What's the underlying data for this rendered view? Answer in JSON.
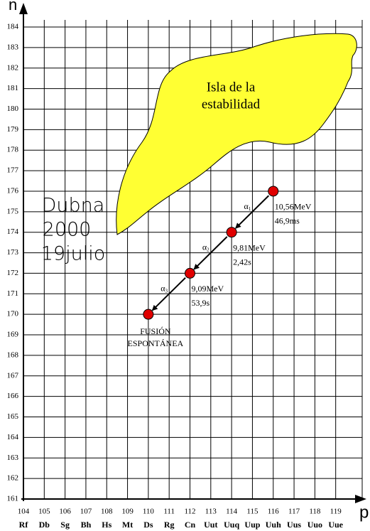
{
  "chart_data": {
    "type": "scatter",
    "x_axis_label": "p",
    "y_axis_label": "n",
    "xlim": [
      104,
      120
    ],
    "ylim": [
      161,
      184
    ],
    "xticks": [
      104,
      105,
      106,
      107,
      108,
      109,
      110,
      111,
      112,
      113,
      114,
      115,
      116,
      117,
      118,
      119
    ],
    "element_symbols": [
      "Rf",
      "Db",
      "Sg",
      "Bh",
      "Hs",
      "Mt",
      "Ds",
      "Rg",
      "Cn",
      "Uut",
      "Uuq",
      "Uup",
      "Uuh",
      "Uus",
      "Uuo",
      "Uue"
    ],
    "yticks": [
      161,
      162,
      163,
      164,
      165,
      166,
      167,
      168,
      169,
      170,
      171,
      172,
      173,
      174,
      175,
      176,
      177,
      178,
      179,
      180,
      181,
      182,
      183,
      184
    ],
    "grid": true,
    "series": [
      {
        "color": "#e00000",
        "x": [
          116,
          114,
          112,
          110
        ],
        "values": [
          176,
          174,
          172,
          170
        ]
      }
    ],
    "decays": [
      {
        "symbol": "α",
        "index": "1",
        "energy": "10,56MeV",
        "time": "46,9ms"
      },
      {
        "symbol": "α",
        "index": "2",
        "energy": "9,81MeV",
        "time": "2,42s"
      },
      {
        "symbol": "α",
        "index": "3",
        "energy": "9,09MeV",
        "time": "53,9s"
      }
    ],
    "final_label": [
      "FUSIÓN",
      "ESPONTÁNEA"
    ],
    "island_label": [
      "Isla de la",
      "estabilidad"
    ],
    "experiment_label": [
      "Dubna",
      "2000",
      "19julio"
    ]
  }
}
